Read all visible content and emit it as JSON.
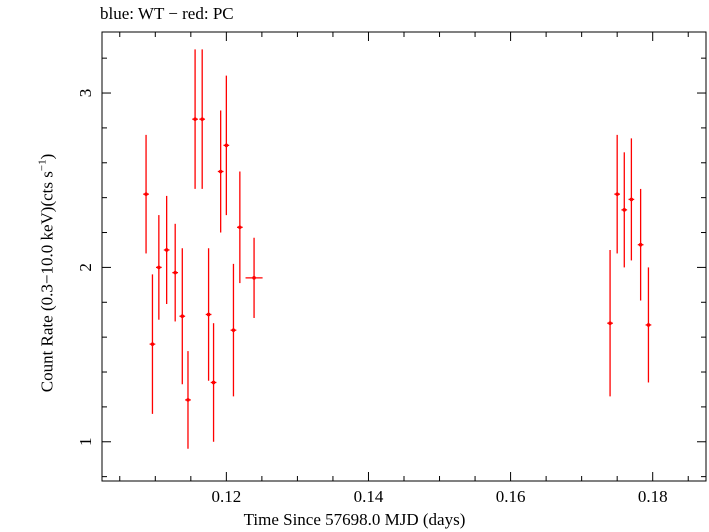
{
  "chart_data": {
    "type": "scatter",
    "title": "blue: WT − red: PC",
    "xlabel": "Time Since 57698.0 MJD (days)",
    "ylabel_main": "Count Rate (0.3−10.0 keV)(cts s",
    "ylabel_sup": "−1",
    "ylabel_end": ")",
    "xlim": [
      0.1025,
      0.1875
    ],
    "ylim": [
      0.775,
      3.35
    ],
    "xticks": [
      0.12,
      0.14,
      0.16,
      0.18
    ],
    "xtick_labels": [
      "0.12",
      "0.14",
      "0.16",
      "0.18"
    ],
    "yticks": [
      1,
      2,
      3
    ],
    "ytick_labels": [
      "1",
      "2",
      "3"
    ],
    "grid": false,
    "series": [
      {
        "color": "#ff0000",
        "points": [
          {
            "x": 0.1087,
            "xerr": 0.0004,
            "y": 2.42,
            "yerr": 0.34
          },
          {
            "x": 0.1096,
            "xerr": 0.0004,
            "y": 1.56,
            "yerr": 0.4
          },
          {
            "x": 0.1105,
            "xerr": 0.0004,
            "y": 2.0,
            "yerr": 0.3
          },
          {
            "x": 0.1116,
            "xerr": 0.0004,
            "y": 2.1,
            "yerr": 0.31
          },
          {
            "x": 0.1128,
            "xerr": 0.0004,
            "y": 1.97,
            "yerr": 0.28
          },
          {
            "x": 0.1138,
            "xerr": 0.0004,
            "y": 1.72,
            "yerr": 0.39
          },
          {
            "x": 0.1146,
            "xerr": 0.0004,
            "y": 1.24,
            "yerr": 0.28
          },
          {
            "x": 0.1156,
            "xerr": 0.0004,
            "y": 2.85,
            "yerr": 0.4
          },
          {
            "x": 0.1166,
            "xerr": 0.0004,
            "y": 2.85,
            "yerr": 0.4
          },
          {
            "x": 0.1175,
            "xerr": 0.0004,
            "y": 1.73,
            "yerr": 0.38
          },
          {
            "x": 0.1182,
            "xerr": 0.0004,
            "y": 1.34,
            "yerr": 0.34
          },
          {
            "x": 0.1192,
            "xerr": 0.0004,
            "y": 2.55,
            "yerr": 0.35
          },
          {
            "x": 0.12,
            "xerr": 0.0004,
            "y": 2.7,
            "yerr": 0.4
          },
          {
            "x": 0.121,
            "xerr": 0.0004,
            "y": 1.64,
            "yerr": 0.38
          },
          {
            "x": 0.1219,
            "xerr": 0.0004,
            "y": 2.23,
            "yerr": 0.32
          },
          {
            "x": 0.1239,
            "xerr": 0.0012,
            "y": 1.94,
            "yerr": 0.23
          },
          {
            "x": 0.174,
            "xerr": 0.0004,
            "y": 1.68,
            "yerr": 0.42
          },
          {
            "x": 0.175,
            "xerr": 0.0004,
            "y": 2.42,
            "yerr": 0.34
          },
          {
            "x": 0.176,
            "xerr": 0.0004,
            "y": 2.33,
            "yerr": 0.33
          },
          {
            "x": 0.177,
            "xerr": 0.0004,
            "y": 2.39,
            "yerr": 0.35
          },
          {
            "x": 0.1783,
            "xerr": 0.0004,
            "y": 2.13,
            "yerr": 0.32
          },
          {
            "x": 0.1794,
            "xerr": 0.0004,
            "y": 1.67,
            "yerr": 0.33
          }
        ]
      }
    ]
  }
}
